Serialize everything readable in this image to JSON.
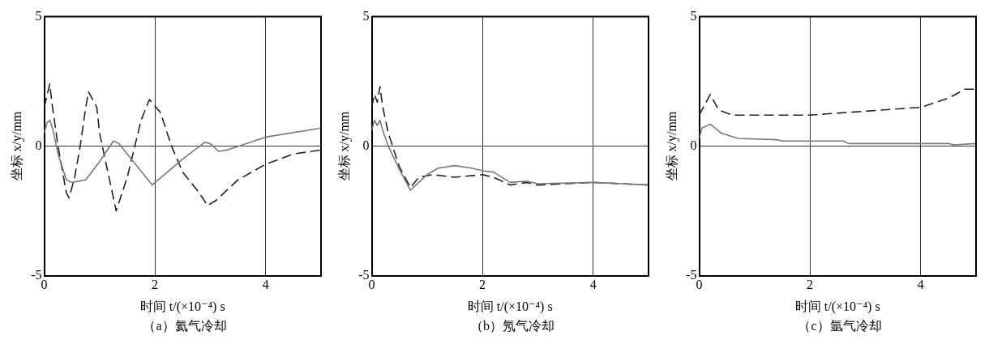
{
  "chart_data": [
    {
      "type": "line",
      "xlabel": "时间 t/(×10⁻⁴) s",
      "ylabel": "坐标 x/y/mm",
      "annotations": [
        "（a）氦气冷却"
      ],
      "xlim": [
        0,
        5
      ],
      "ylim": [
        -5,
        5
      ],
      "xticks": [
        0,
        2,
        4
      ],
      "yticks": [
        -5,
        0,
        5
      ],
      "grid": true,
      "legend": false,
      "marker": "none",
      "series": [
        {
          "color": "#7a7a7a",
          "line_style": "solid",
          "x": [
            0,
            0.05,
            0.1,
            0.15,
            0.25,
            0.4,
            0.5,
            0.75,
            1.0,
            1.25,
            1.35,
            1.95,
            2.5,
            2.9,
            3.0,
            3.15,
            3.3,
            4.0,
            5.0
          ],
          "values": [
            0.5,
            0.9,
            1.0,
            0.7,
            -0.3,
            -1.3,
            -1.4,
            -1.3,
            -0.6,
            0.2,
            0.1,
            -1.5,
            -0.5,
            0.15,
            0.1,
            -0.2,
            -0.15,
            0.35,
            0.7
          ]
        },
        {
          "color": "#222222",
          "line_style": "dashed",
          "x": [
            0,
            0.1,
            0.15,
            0.25,
            0.4,
            0.45,
            0.55,
            0.65,
            0.75,
            0.8,
            0.95,
            1.0,
            1.15,
            1.3,
            1.5,
            1.75,
            1.9,
            2.1,
            2.3,
            2.5,
            2.8,
            2.95,
            3.1,
            3.5,
            4.0,
            4.5,
            5.0
          ],
          "values": [
            1.5,
            2.4,
            1.5,
            0,
            -1.8,
            -2.0,
            -1.2,
            0,
            1.5,
            2.1,
            1.5,
            0.5,
            -1.0,
            -2.5,
            -1.2,
            1.0,
            1.8,
            1.3,
            0,
            -1.0,
            -1.8,
            -2.3,
            -2.1,
            -1.3,
            -0.7,
            -0.3,
            -0.15
          ]
        }
      ]
    },
    {
      "type": "line",
      "xlabel": "时间 t/(×10⁻⁴) s",
      "ylabel": "坐标 x/y/mm",
      "annotations": [
        "（b）氖气冷却"
      ],
      "xlim": [
        0,
        5
      ],
      "ylim": [
        -5,
        5
      ],
      "xticks": [
        0,
        2,
        4
      ],
      "yticks": [
        -5,
        0,
        5
      ],
      "grid": true,
      "legend": false,
      "marker": "none",
      "series": [
        {
          "color": "#7a7a7a",
          "line_style": "solid",
          "x": [
            0,
            0.05,
            0.1,
            0.15,
            0.2,
            0.3,
            0.5,
            0.7,
            0.8,
            1.0,
            1.2,
            1.5,
            1.8,
            2.0,
            2.2,
            2.5,
            2.8,
            3.0,
            4.0,
            5.0
          ],
          "values": [
            0.6,
            1.0,
            0.8,
            1.0,
            0.6,
            0,
            -0.9,
            -1.7,
            -1.5,
            -1.1,
            -0.85,
            -0.75,
            -0.85,
            -0.95,
            -1.0,
            -1.4,
            -1.35,
            -1.45,
            -1.4,
            -1.5
          ]
        },
        {
          "color": "#222222",
          "line_style": "dashed",
          "x": [
            0,
            0.05,
            0.1,
            0.15,
            0.2,
            0.3,
            0.5,
            0.7,
            0.85,
            1.1,
            1.5,
            2.0,
            2.2,
            2.5,
            2.8,
            3.0,
            4.0,
            5.0
          ],
          "values": [
            1.5,
            2.0,
            1.7,
            2.3,
            1.5,
            0.5,
            -0.8,
            -1.6,
            -1.2,
            -1.1,
            -1.2,
            -1.1,
            -1.2,
            -1.5,
            -1.4,
            -1.5,
            -1.4,
            -1.5
          ]
        }
      ]
    },
    {
      "type": "line",
      "xlabel": "时间 t/(×10⁻⁴) s",
      "ylabel": "坐标 x/y/mm",
      "annotations": [
        "（c）氩气冷却"
      ],
      "xlim": [
        0,
        5
      ],
      "ylim": [
        -5,
        5
      ],
      "xticks": [
        0,
        2,
        4
      ],
      "yticks": [
        -5,
        0,
        5
      ],
      "grid": true,
      "legend": false,
      "marker": "none",
      "series": [
        {
          "color": "#7a7a7a",
          "line_style": "solid",
          "x": [
            0,
            0.05,
            0.2,
            0.4,
            0.7,
            1.4,
            1.5,
            2.6,
            2.7,
            4.5,
            4.6,
            5.0
          ],
          "values": [
            0.3,
            0.7,
            0.85,
            0.5,
            0.3,
            0.25,
            0.2,
            0.2,
            0.1,
            0.1,
            0.05,
            0.1
          ]
        },
        {
          "color": "#222222",
          "line_style": "dashed",
          "x": [
            0,
            0.1,
            0.2,
            0.35,
            0.6,
            1.0,
            2.0,
            3.0,
            4.0,
            4.5,
            4.8,
            5.0
          ],
          "values": [
            1.2,
            1.6,
            2.0,
            1.4,
            1.2,
            1.2,
            1.2,
            1.35,
            1.5,
            1.85,
            2.2,
            2.2
          ]
        }
      ]
    }
  ]
}
